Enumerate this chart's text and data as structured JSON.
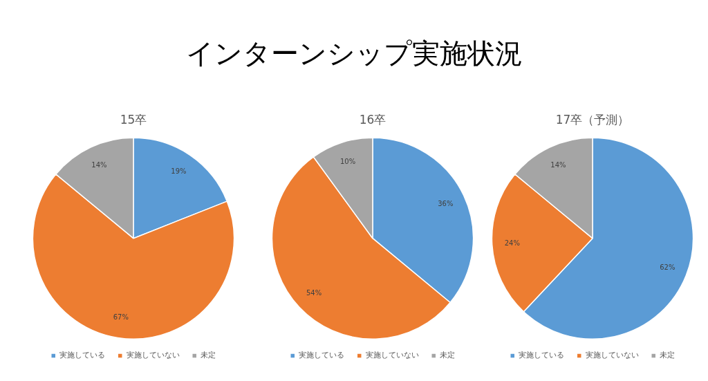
{
  "chart_data": [
    {
      "type": "other",
      "title": "インターンシップ実施状況"
    },
    {
      "type": "pie",
      "title": "15卒",
      "categories": [
        "実施している",
        "実施していない",
        "未定"
      ],
      "values": [
        19,
        67,
        14
      ],
      "colors": [
        "#5b9bd5",
        "#ed7d31",
        "#a5a5a5"
      ],
      "value_labels": [
        "19%",
        "67%",
        "14%"
      ],
      "legend": "bottom"
    },
    {
      "type": "pie",
      "title": "16卒",
      "categories": [
        "実施している",
        "実施していない",
        "未定"
      ],
      "values": [
        36,
        54,
        10
      ],
      "colors": [
        "#5b9bd5",
        "#ed7d31",
        "#a5a5a5"
      ],
      "value_labels": [
        "36%",
        "54%",
        "10%"
      ],
      "legend": "bottom"
    },
    {
      "type": "pie",
      "title": "17卒（予測）",
      "categories": [
        "実施している",
        "実施していない",
        "未定"
      ],
      "values": [
        62,
        24,
        14
      ],
      "colors": [
        "#5b9bd5",
        "#ed7d31",
        "#a5a5a5"
      ],
      "value_labels": [
        "62%",
        "24%",
        "14%"
      ],
      "legend": "bottom"
    }
  ]
}
